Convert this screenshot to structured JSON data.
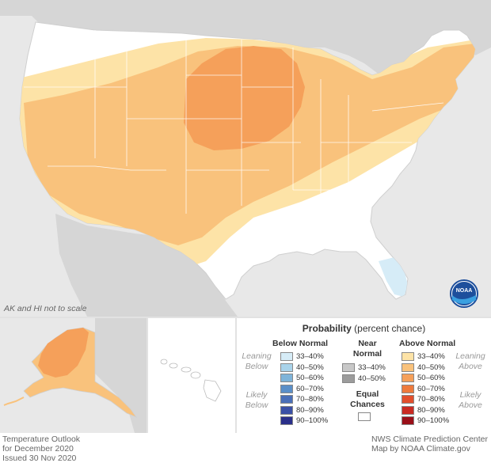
{
  "map": {
    "scale_note": "AK and HI not to scale",
    "logo_text": "NOAA"
  },
  "legend": {
    "title_bold": "Probability",
    "title_rest": " (percent chance)",
    "below_head": "Below Normal",
    "near_head_1": "Near",
    "near_head_2": "Normal",
    "above_head": "Above Normal",
    "leaning_below_1": "Leaning",
    "leaning_below_2": "Below",
    "likely_below_1": "Likely",
    "likely_below_2": "Below",
    "leaning_above_1": "Leaning",
    "leaning_above_2": "Above",
    "likely_above_1": "Likely",
    "likely_above_2": "Above",
    "equal_1": "Equal",
    "equal_2": "Chances",
    "below": [
      {
        "label": "33–40%",
        "color": "#d6ecf7"
      },
      {
        "label": "40–50%",
        "color": "#a9d3ea"
      },
      {
        "label": "50–60%",
        "color": "#7fb4d9"
      },
      {
        "label": "60–70%",
        "color": "#5a8fc8"
      },
      {
        "label": "70–80%",
        "color": "#4a6fb8"
      },
      {
        "label": "80–90%",
        "color": "#3a50a6"
      },
      {
        "label": "90–100%",
        "color": "#2a2f8a"
      }
    ],
    "near": [
      {
        "label": "33–40%",
        "color": "#c8c8c8"
      },
      {
        "label": "40–50%",
        "color": "#9c9c9c"
      }
    ],
    "above": [
      {
        "label": "33–40%",
        "color": "#fde3a7"
      },
      {
        "label": "40–50%",
        "color": "#f9c27c"
      },
      {
        "label": "50–60%",
        "color": "#f5a05a"
      },
      {
        "label": "60–70%",
        "color": "#ee7a3c"
      },
      {
        "label": "70–80%",
        "color": "#e24f2c"
      },
      {
        "label": "80–90%",
        "color": "#c92a22"
      },
      {
        "label": "90–100%",
        "color": "#9a0f18"
      }
    ]
  },
  "footer": {
    "left_1": "Temperature Outlook",
    "left_2": "for December 2020",
    "left_3": "Issued 30 Nov 2020",
    "right_1": "NWS Climate Prediction Center",
    "right_2": "Map by NOAA Climate.gov"
  },
  "colors": {
    "ocean": "#e8e8e8",
    "land_outside": "#d6d6d6",
    "equal_chances": "#ffffff",
    "above_33_40": "#fde3a7",
    "above_40_50": "#f9c27c",
    "above_50_60": "#f5a05a",
    "below_33_40": "#d6ecf7"
  }
}
